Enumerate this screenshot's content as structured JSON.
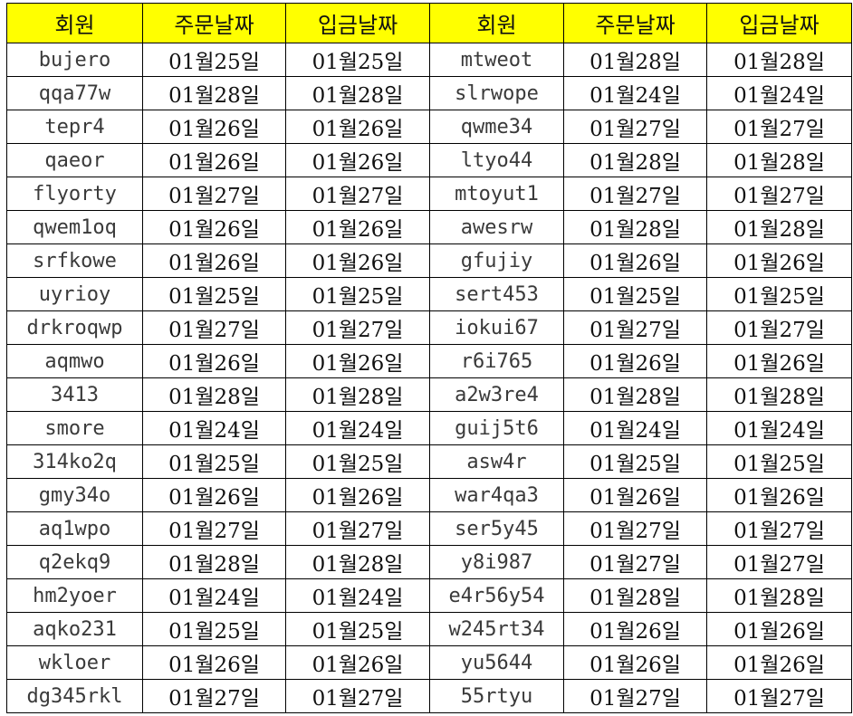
{
  "header_color": "#ffff00",
  "headers": [
    "회원",
    "주문날짜",
    "입금날짜",
    "회원",
    "주문날짜",
    "입금날짜"
  ],
  "rows": [
    [
      "bujero",
      "01월25일",
      "01월25일",
      "mtweot",
      "01월28일",
      "01월28일"
    ],
    [
      "qqa77w",
      "01월28일",
      "01월28일",
      "slrwope",
      "01월24일",
      "01월24일"
    ],
    [
      "tepr4",
      "01월26일",
      "01월26일",
      "qwme34",
      "01월27일",
      "01월27일"
    ],
    [
      "qaeor",
      "01월26일",
      "01월26일",
      "ltyo44",
      "01월28일",
      "01월28일"
    ],
    [
      "flyorty",
      "01월27일",
      "01월27일",
      "mtoyut1",
      "01월27일",
      "01월27일"
    ],
    [
      "qwem1oq",
      "01월26일",
      "01월26일",
      "awesrw",
      "01월28일",
      "01월28일"
    ],
    [
      "srfkowe",
      "01월26일",
      "01월26일",
      "gfujiy",
      "01월26일",
      "01월26일"
    ],
    [
      "uyrioy",
      "01월25일",
      "01월25일",
      "sert453",
      "01월25일",
      "01월25일"
    ],
    [
      "drkroqwp",
      "01월27일",
      "01월27일",
      "iokui67",
      "01월27일",
      "01월27일"
    ],
    [
      "aqmwo",
      "01월26일",
      "01월26일",
      "r6i765",
      "01월26일",
      "01월26일"
    ],
    [
      "3413",
      "01월28일",
      "01월28일",
      "a2w3re4",
      "01월28일",
      "01월28일"
    ],
    [
      "smore",
      "01월24일",
      "01월24일",
      "guij5t6",
      "01월24일",
      "01월24일"
    ],
    [
      "314ko2q",
      "01월25일",
      "01월25일",
      "asw4r",
      "01월25일",
      "01월25일"
    ],
    [
      "gmy34o",
      "01월26일",
      "01월26일",
      "war4qa3",
      "01월26일",
      "01월26일"
    ],
    [
      "aq1wpo",
      "01월27일",
      "01월27일",
      "ser5y45",
      "01월27일",
      "01월27일"
    ],
    [
      "q2ekq9",
      "01월28일",
      "01월28일",
      "y8i987",
      "01월27일",
      "01월27일"
    ],
    [
      "hm2yoer",
      "01월24일",
      "01월24일",
      "e4r56y54",
      "01월28일",
      "01월28일"
    ],
    [
      "aqko231",
      "01월25일",
      "01월25일",
      "w245rt34",
      "01월26일",
      "01월26일"
    ],
    [
      "wkloer",
      "01월26일",
      "01월26일",
      "yu5644",
      "01월26일",
      "01월26일"
    ],
    [
      "dg345rkl",
      "01월27일",
      "01월27일",
      "55rtyu",
      "01월27일",
      "01월27일"
    ]
  ]
}
